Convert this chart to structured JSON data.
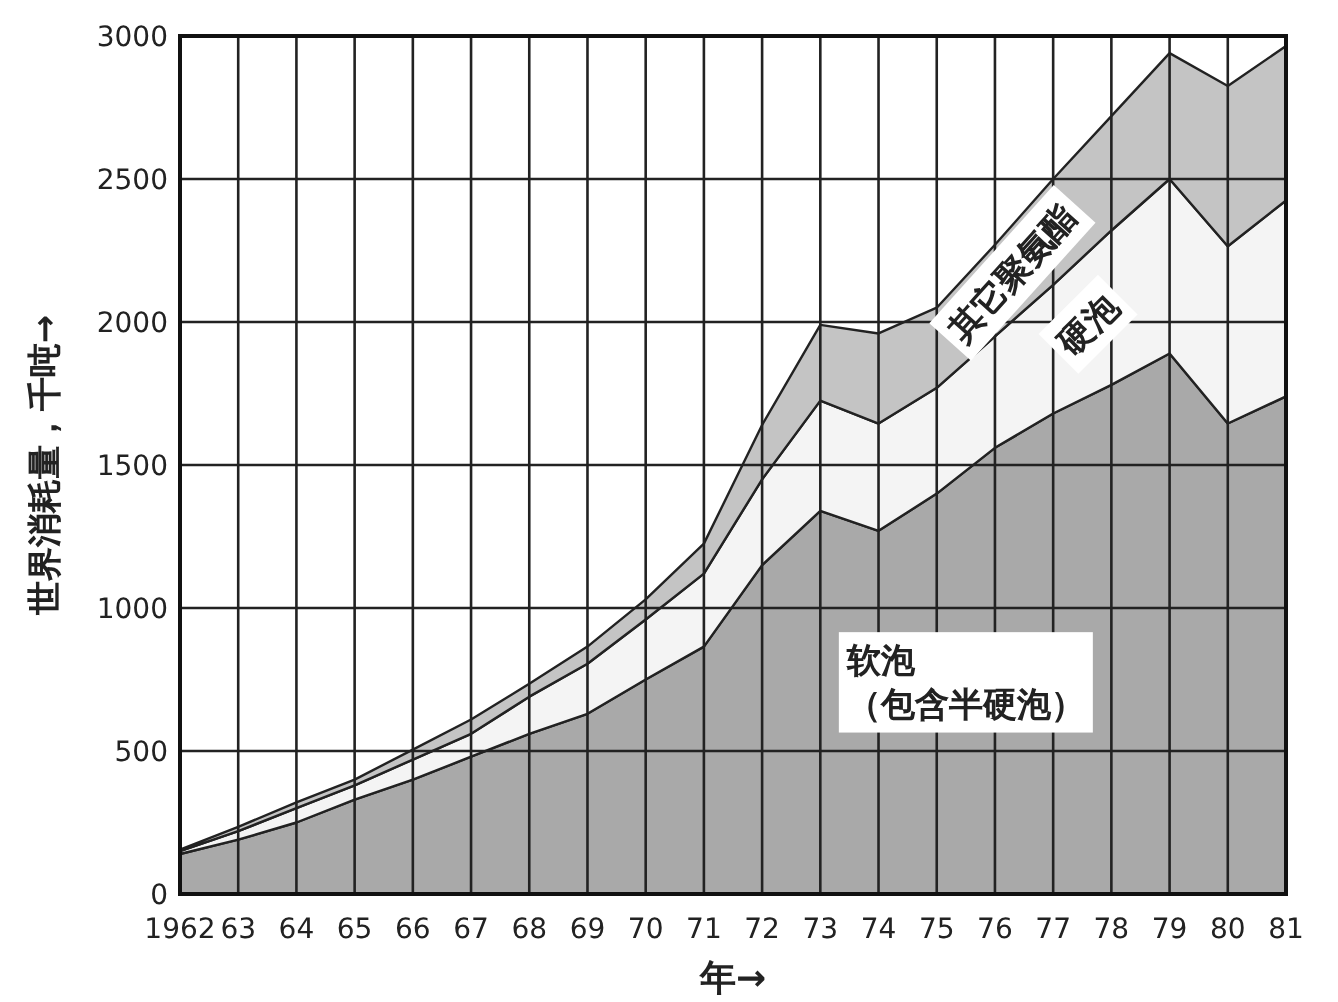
{
  "chart_data": {
    "type": "area",
    "stacked": true,
    "xlabel": "年→",
    "ylabel": "世界消耗量，千吨→",
    "categories": [
      "1962",
      "63",
      "64",
      "65",
      "66",
      "67",
      "68",
      "69",
      "70",
      "71",
      "72",
      "73",
      "74",
      "75",
      "76",
      "77",
      "78",
      "79",
      "80",
      "81"
    ],
    "ylim": [
      0,
      3000
    ],
    "yticks": [
      0,
      500,
      1000,
      1500,
      2000,
      2500,
      3000
    ],
    "grid": true,
    "series": [
      {
        "name": "软泡（包含半硬泡）",
        "color": "#a9a9a9",
        "values": [
          140,
          190,
          250,
          330,
          400,
          480,
          560,
          630,
          750,
          865,
          1150,
          1340,
          1270,
          1400,
          1560,
          1680,
          1780,
          1890,
          1645,
          1740
        ]
      },
      {
        "name": "硬泡",
        "color": "#f4f4f4",
        "values": [
          10,
          30,
          50,
          50,
          70,
          80,
          130,
          175,
          210,
          255,
          300,
          385,
          375,
          370,
          390,
          450,
          540,
          610,
          620,
          685
        ]
      },
      {
        "name": "其它聚氨酯",
        "color": "#c4c4c4",
        "values": [
          5,
          15,
          20,
          20,
          35,
          50,
          45,
          60,
          70,
          105,
          190,
          265,
          315,
          280,
          320,
          370,
          400,
          440,
          560,
          540
        ]
      }
    ]
  }
}
